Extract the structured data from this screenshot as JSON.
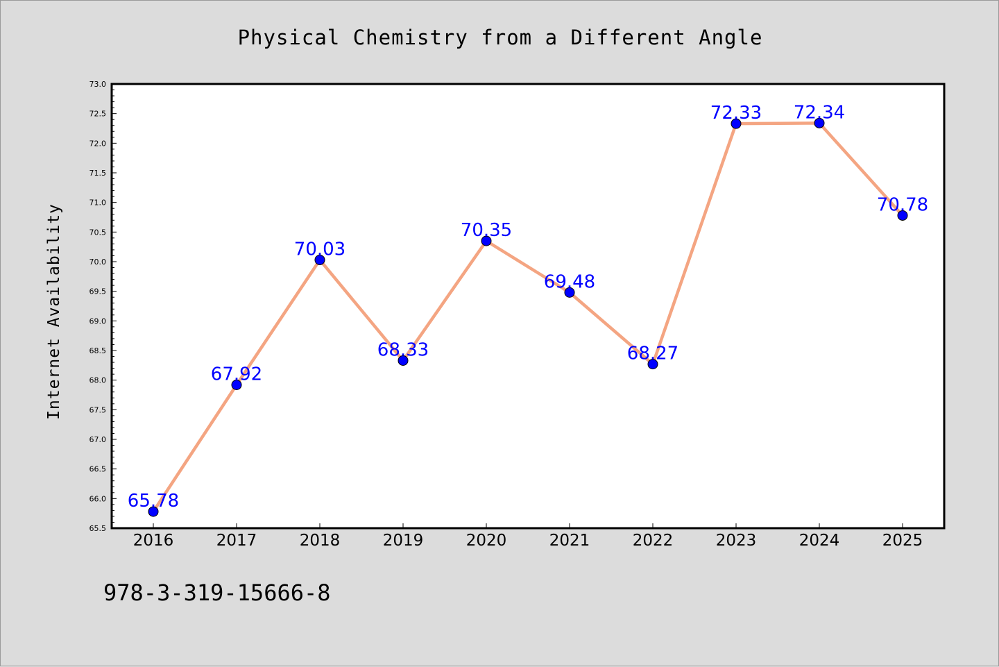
{
  "chart_data": {
    "type": "line",
    "title": "Physical Chemistry from a Different Angle",
    "xlabel": "",
    "ylabel": "Internet Availability",
    "categories": [
      "2016",
      "2017",
      "2018",
      "2019",
      "2020",
      "2021",
      "2022",
      "2023",
      "2024",
      "2025"
    ],
    "series": [
      {
        "values": [
          65.78,
          67.92,
          70.03,
          68.33,
          70.35,
          69.48,
          68.27,
          72.33,
          72.34,
          70.78
        ],
        "data_labels": [
          "65.78",
          "67.92",
          "70.03",
          "68.33",
          "70.35",
          "69.48",
          "68.27",
          "72.33",
          "72.34",
          "70.78"
        ],
        "line_color": "#f4a582",
        "marker_color": "#0000ff"
      }
    ],
    "ylim": [
      65.5,
      73.0
    ],
    "yticks": [
      "65.5",
      "66.0",
      "66.5",
      "67.0",
      "67.5",
      "68.0",
      "68.5",
      "69.0",
      "69.5",
      "70.0",
      "70.5",
      "71.0",
      "71.5",
      "72.0",
      "72.5",
      "73.0"
    ],
    "grid": false,
    "label_color": "#0000ff",
    "background": "#dcdcdc",
    "plot_background": "#ffffff"
  },
  "footer": {
    "isbn": "978-3-319-15666-8"
  }
}
